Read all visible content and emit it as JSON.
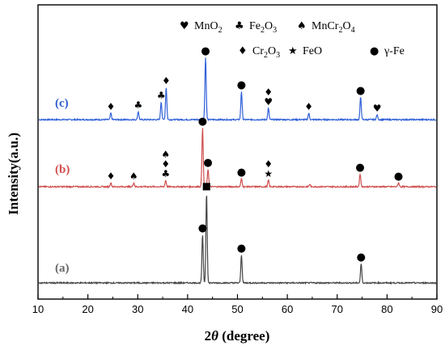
{
  "chart_data": {
    "type": "line",
    "xlabel_prefix": "2",
    "xlabel_theta": "θ",
    "xlabel_suffix": " (degree)",
    "ylabel": "Intensity(a.u.)",
    "xlim": [
      10,
      90
    ],
    "xticks": [
      "10",
      "20",
      "30",
      "40",
      "50",
      "60",
      "70",
      "80",
      "90"
    ],
    "legend": {
      "row1": [
        {
          "symbol": "♥",
          "text": "MnO",
          "sub": "2"
        },
        {
          "symbol": "♣",
          "text": "Fe",
          "sub": "2",
          "text2": "O",
          "sub2": "3"
        },
        {
          "symbol": "♠",
          "text": "MnCr",
          "sub": "2",
          "text2": "O",
          "sub2": "4"
        }
      ],
      "row2": [
        {
          "symbol": "♦",
          "text": "Cr",
          "sub": "2",
          "text2": "O",
          "sub2": "3"
        },
        {
          "symbol": "★",
          "text": "FeO"
        },
        {
          "symbol": "●",
          "text": "γ-Fe"
        }
      ]
    },
    "series": [
      {
        "name": "(c)",
        "color": "#3060d8",
        "label_color": "#2f5fd0",
        "peaks": [
          {
            "x": 24.6,
            "h": 8
          },
          {
            "x": 30.1,
            "h": 10
          },
          {
            "x": 34.7,
            "h": 22
          },
          {
            "x": 35.7,
            "h": 40
          },
          {
            "x": 43.6,
            "h": 77
          },
          {
            "x": 50.8,
            "h": 35
          },
          {
            "x": 56.2,
            "h": 14
          },
          {
            "x": 64.3,
            "h": 8
          },
          {
            "x": 74.7,
            "h": 28
          },
          {
            "x": 78.0,
            "h": 6
          }
        ],
        "markers": [
          {
            "x": 24.6,
            "symbols": [
              "♦"
            ]
          },
          {
            "x": 30.1,
            "symbols": [
              "♣"
            ]
          },
          {
            "x": 34.7,
            "symbols": [
              "♣"
            ]
          },
          {
            "x": 35.7,
            "symbols": [
              "♦"
            ]
          },
          {
            "x": 43.6,
            "symbols": [
              "●"
            ]
          },
          {
            "x": 50.8,
            "symbols": [
              "●"
            ]
          },
          {
            "x": 56.2,
            "symbols": [
              "♦",
              "♥"
            ]
          },
          {
            "x": 64.3,
            "symbols": [
              "♦"
            ]
          },
          {
            "x": 74.7,
            "symbols": [
              "●"
            ]
          },
          {
            "x": 78.0,
            "symbols": [
              "♥"
            ]
          }
        ]
      },
      {
        "name": "(b)",
        "color": "#d05050",
        "label_color": "#d05050",
        "peaks": [
          {
            "x": 24.6,
            "h": 5
          },
          {
            "x": 29.2,
            "h": 5
          },
          {
            "x": 35.6,
            "h": 8
          },
          {
            "x": 43.0,
            "h": 73
          },
          {
            "x": 44.1,
            "h": 22
          },
          {
            "x": 50.8,
            "h": 10
          },
          {
            "x": 56.2,
            "h": 8
          },
          {
            "x": 64.5,
            "h": 3
          },
          {
            "x": 74.6,
            "h": 16
          },
          {
            "x": 82.3,
            "h": 5
          }
        ],
        "markers": [
          {
            "x": 24.6,
            "symbols": [
              "♦"
            ]
          },
          {
            "x": 29.2,
            "symbols": [
              "♠"
            ]
          },
          {
            "x": 35.6,
            "symbols": [
              "♠",
              "♦",
              "♣"
            ]
          },
          {
            "x": 43.0,
            "symbols": [
              "●"
            ]
          },
          {
            "x": 44.1,
            "symbols": [
              "●"
            ]
          },
          {
            "x": 50.8,
            "symbols": [
              "●"
            ]
          },
          {
            "x": 56.2,
            "symbols": [
              "♦",
              "★"
            ]
          },
          {
            "x": 74.6,
            "symbols": [
              "●"
            ]
          },
          {
            "x": 82.3,
            "symbols": [
              "●"
            ]
          }
        ]
      },
      {
        "name": "(a)",
        "color": "#454545",
        "label_color": "#666666",
        "peaks": [
          {
            "x": 43.0,
            "h": 60
          },
          {
            "x": 43.8,
            "h": 112
          },
          {
            "x": 50.8,
            "h": 35
          },
          {
            "x": 74.8,
            "h": 24
          }
        ],
        "markers": [
          {
            "x": 43.0,
            "symbols": [
              "●"
            ]
          },
          {
            "x": 43.8,
            "symbols": [
              "■"
            ]
          },
          {
            "x": 50.8,
            "symbols": [
              "●"
            ]
          },
          {
            "x": 74.8,
            "symbols": [
              "●"
            ]
          }
        ]
      }
    ]
  }
}
